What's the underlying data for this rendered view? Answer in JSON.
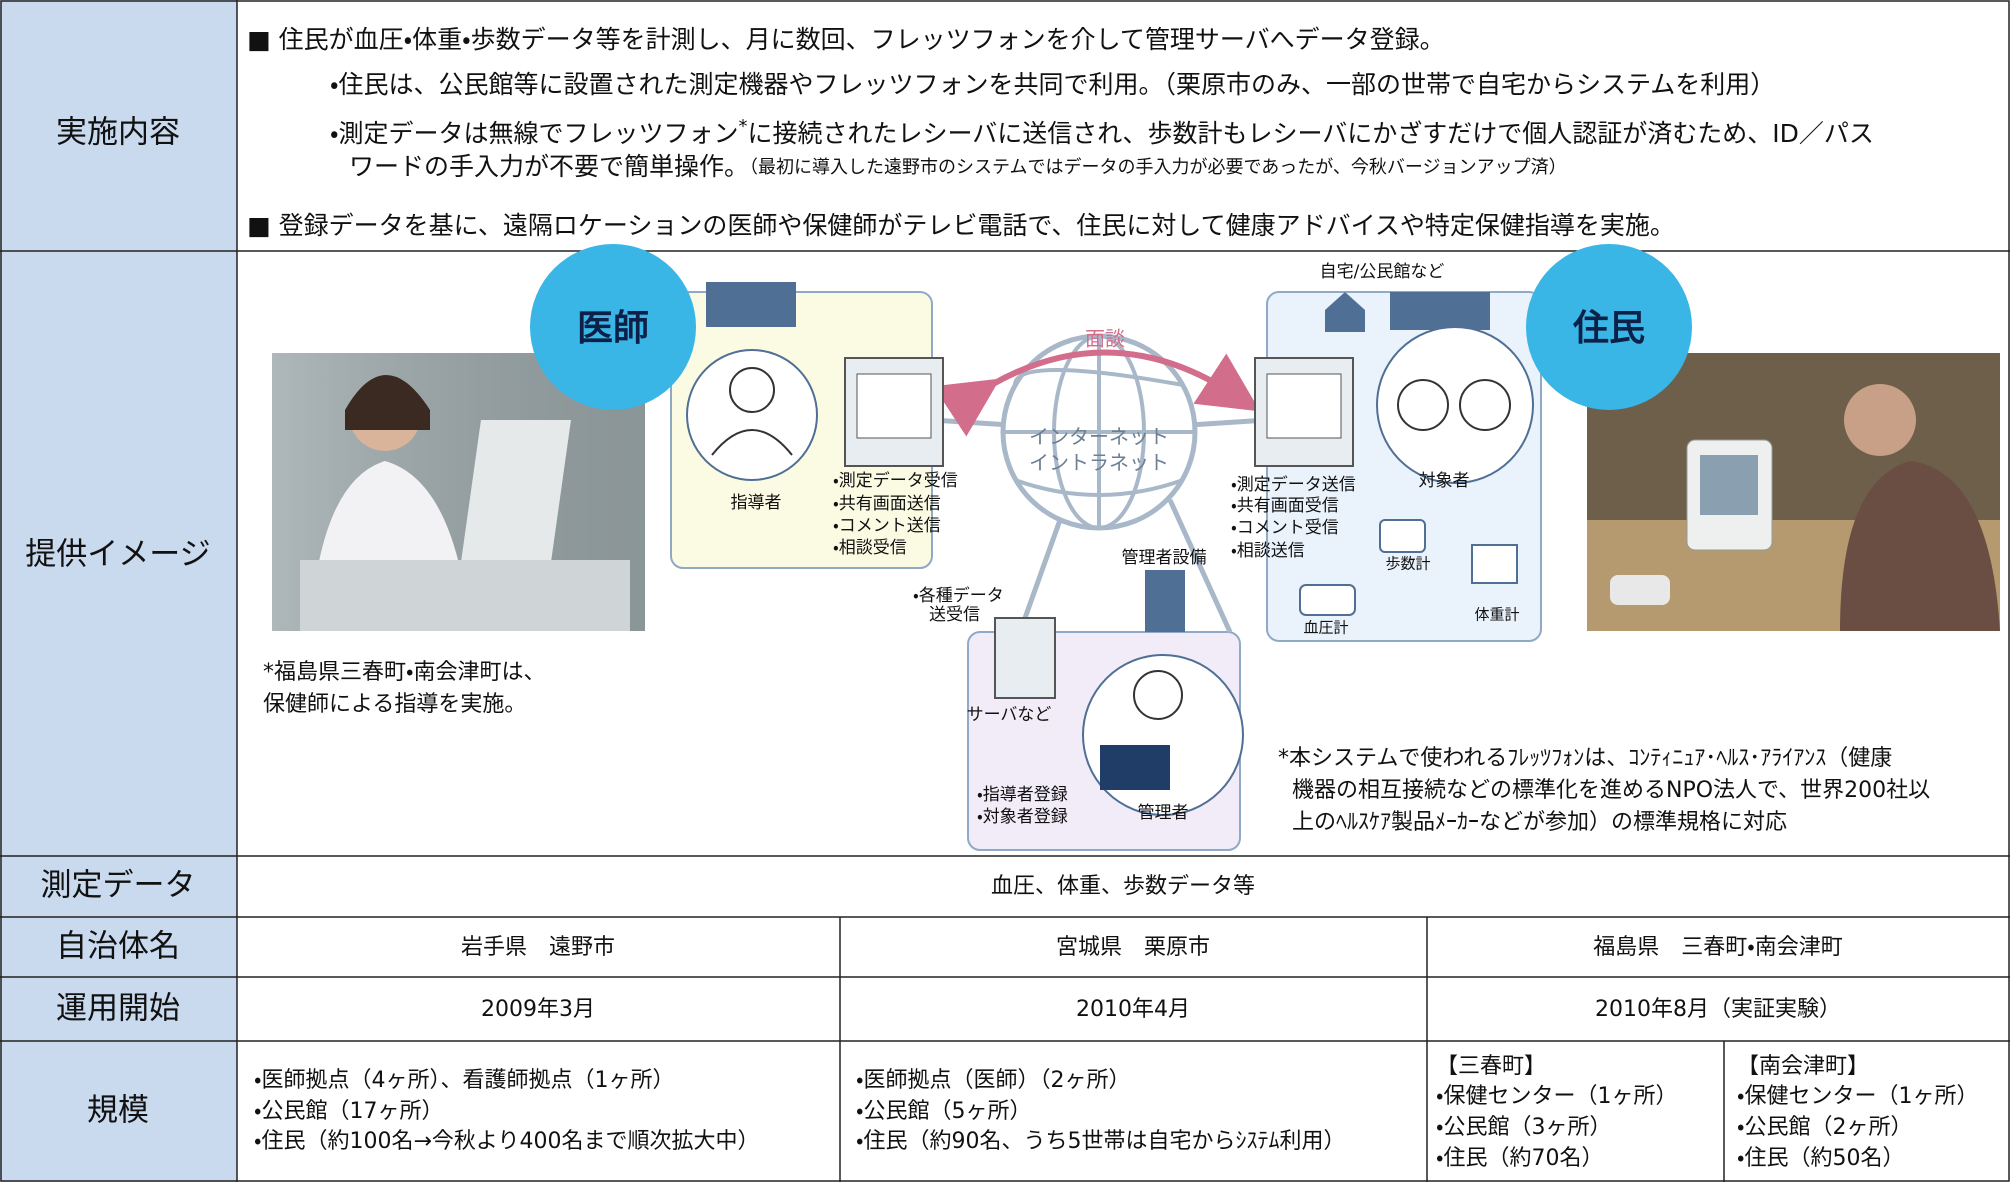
{
  "implementation": {
    "label": "実施内容",
    "line1": "■ 住民が血圧・体重・歩数データ等を計測し、月に数回、フレッツフォンを介して管理サーバへデータ登録。",
    "line2": "・住民は、公民館等に設置された測定機器やフレッツフォンを共同で利用。（栗原市のみ、一部の世帯で自宅からシステムを利用）",
    "line3": {
      "text_a": "・測定データは無線でフレッツフォン",
      "mark": "*",
      "text_b": "に接続されたレシーバに送信され、歩数計もレシーバにかざすだけで個人認証が済むため、ID／パス",
      "text_c": "ワードの手入力が不要で簡単操作。",
      "note": "（最初に導入した遠野市のシステムではデータの手入力が必要であったが、今秋バージョンアップ済）"
    },
    "line4": "■ 登録データを基に、遠隔ロケーションの医師や保健師がテレビ電話で、住民に対して健康アドバイスや特定保健指導を実施。"
  },
  "image": {
    "label": "提供イメージ",
    "doctor_badge": "医師",
    "resident_badge": "住民",
    "photo_caption": [
      "*福島県三春町・南会津町は、",
      "保健師による指導を実施。"
    ],
    "interview": "面談",
    "network": [
      "インターネット",
      "イントラネット"
    ],
    "home_place": "自宅/公民館など",
    "instructor": "指導者",
    "instructor_functions": [
      "・測定データ受信",
      "・共有画面送信",
      "・コメント送信",
      "・相談受信"
    ],
    "subject": "対象者",
    "subject_functions": [
      "・測定データ送信",
      "・共有画面受信",
      "・コメント受信",
      "・相談送信"
    ],
    "pedometer": "歩数計",
    "scale": "体重計",
    "bp_monitor": "血圧計",
    "admin_facility": "管理者設備",
    "data_exchange": [
      "・各種データ",
      "送受信"
    ],
    "server": "サーバなど",
    "admin": "管理者",
    "admin_functions": [
      "・指導者登録",
      "・対象者登録"
    ],
    "footnote": [
      "*本システムで使われるﾌﾚｯﾂﾌｫﾝは、ｺﾝﾃｨﾆｭｱ･ﾍﾙｽ･ｱﾗｲｱﾝｽ（健康",
      "機器の相互接続などの標準化を進めるNPO法人で、世界200社以",
      "上のﾍﾙｽｹｱ製品ﾒｰｶｰなどが参加）の標準規格に対応"
    ]
  },
  "measurement": {
    "label": "測定データ",
    "value": "血圧、体重、歩数データ等"
  },
  "municipality": {
    "label": "自治体名",
    "values": [
      "岩手県　遠野市",
      "宮城県　栗原市",
      "福島県　三春町・南会津町"
    ]
  },
  "start": {
    "label": "運用開始",
    "values": [
      "2009年3月",
      "2010年4月",
      "2010年8月（実証実験）"
    ]
  },
  "scale": {
    "label": "規模",
    "columns": [
      [
        "・医師拠点（4ヶ所）、看護師拠点（1ヶ所）",
        "・公民館（17ヶ所）",
        "・住民（約100名→今秋より400名まで順次拡大中）"
      ],
      [
        "・医師拠点（医師）（2ヶ所）",
        "・公民館（5ヶ所）",
        "・住民（約90名、うち5世帯は自宅からｼｽﾃﾑ利用）"
      ],
      [
        "【三春町】",
        "・保健センター（1ヶ所）",
        "・公民館（3ヶ所）",
        "・住民（約70名）"
      ],
      [
        "【南会津町】",
        "・保健センター（1ヶ所）",
        "・公民館（2ヶ所）",
        "・住民（約50名）"
      ]
    ]
  }
}
